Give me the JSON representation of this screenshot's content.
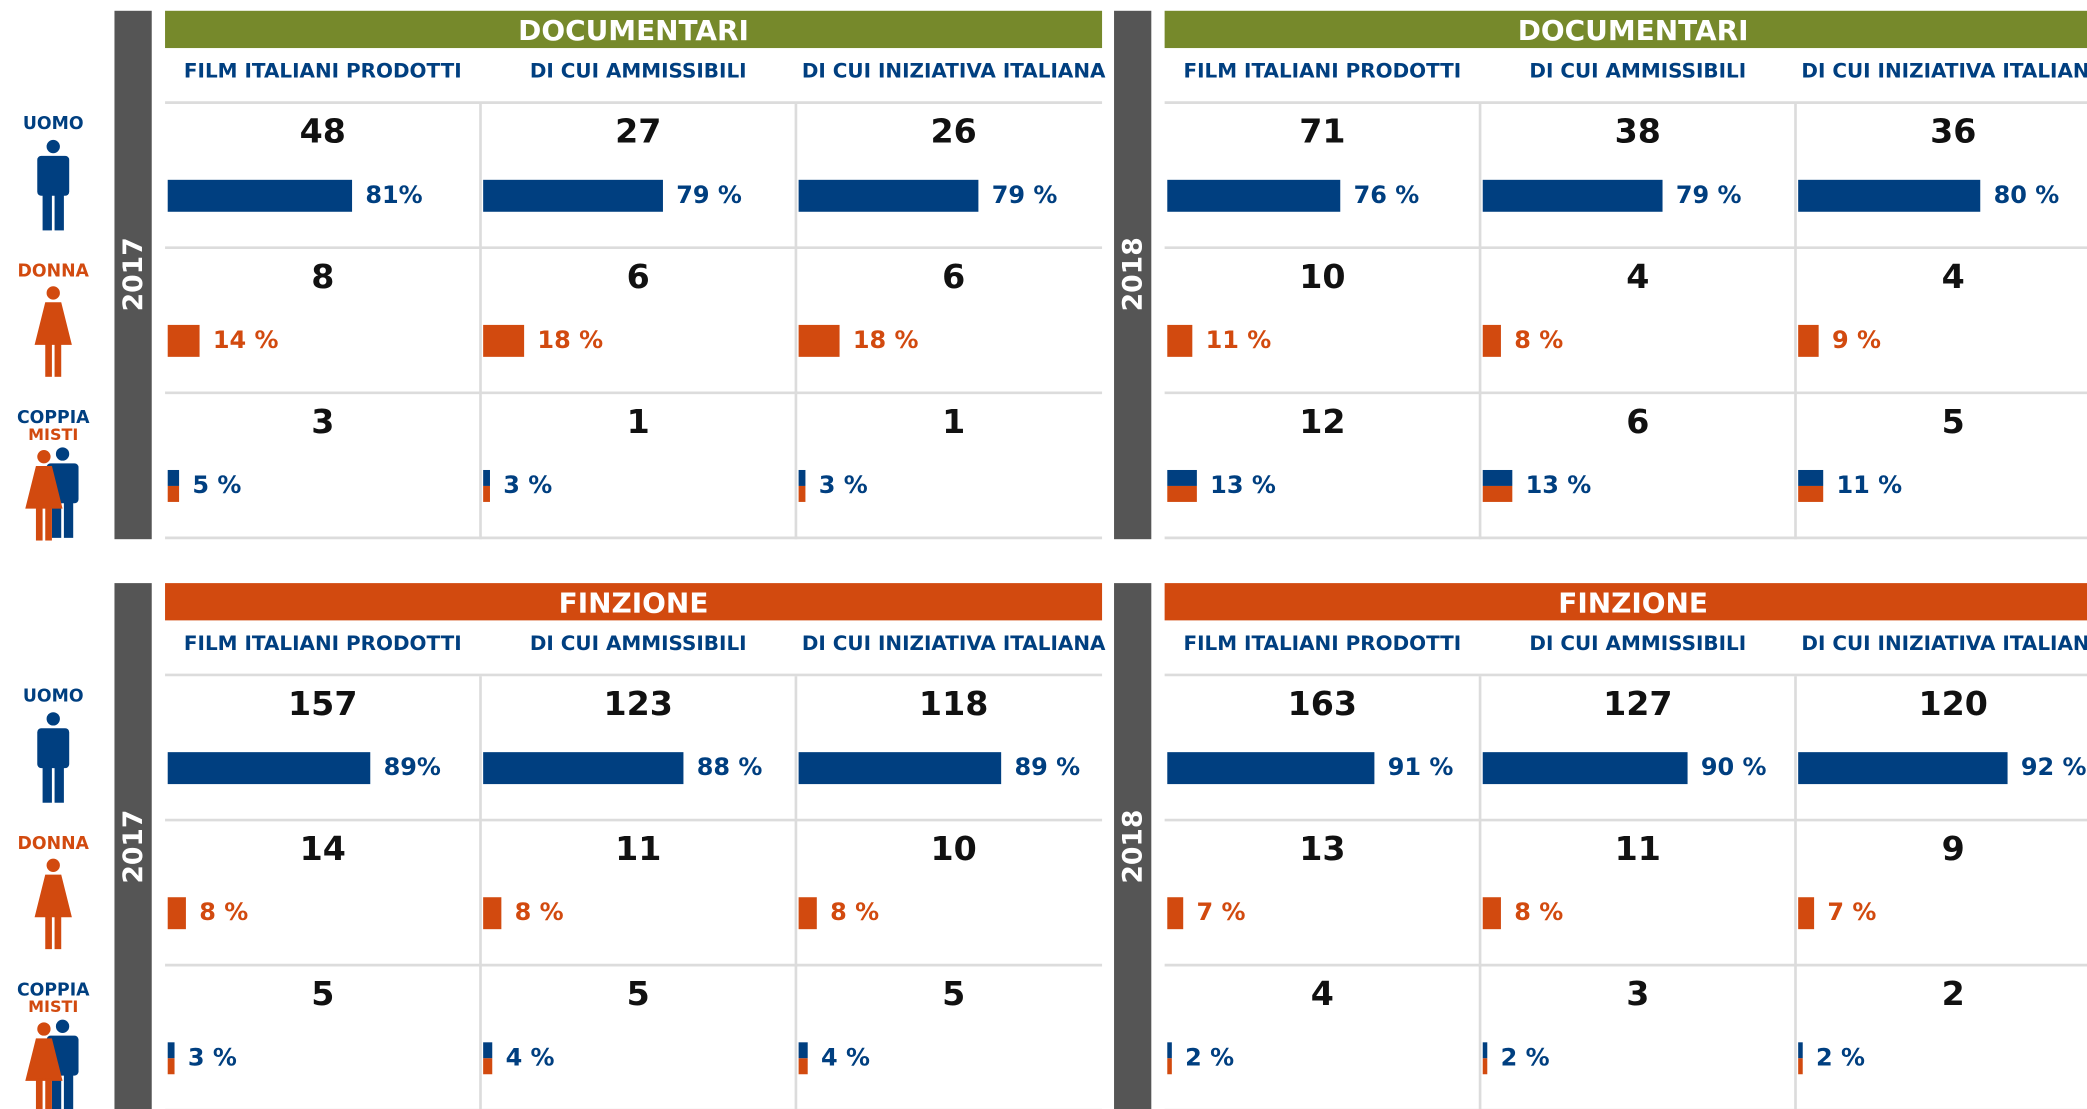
{
  "row_labels": {
    "uomo": "UOMO",
    "donna": "DONNA",
    "coppia": "COPPIA",
    "misti": "MISTI"
  },
  "panels": [
    {
      "title": "DOCUMENTARI",
      "year": "2017",
      "columns": [
        "FILM ITALIANI PRODOTTI",
        "DI CUI AMMISSIBILI",
        "DI CUI INIZIATIVA ITALIANA"
      ],
      "cells": [
        [
          {
            "count": 48,
            "pct": 81,
            "pct_label": "81%"
          },
          {
            "count": 27,
            "pct": 79,
            "pct_label": "79 %"
          },
          {
            "count": 26,
            "pct": 79,
            "pct_label": "79 %"
          }
        ],
        [
          {
            "count": 8,
            "pct": 14,
            "pct_label": "14 %"
          },
          {
            "count": 6,
            "pct": 18,
            "pct_label": "18 %"
          },
          {
            "count": 6,
            "pct": 18,
            "pct_label": "18 %"
          }
        ],
        [
          {
            "count": 3,
            "pct": 5,
            "pct_label": "5 %"
          },
          {
            "count": 1,
            "pct": 3,
            "pct_label": "3 %"
          },
          {
            "count": 1,
            "pct": 3,
            "pct_label": "3 %"
          }
        ]
      ]
    },
    {
      "title": "DOCUMENTARI",
      "year": "2018",
      "columns": [
        "FILM ITALIANI PRODOTTI",
        "DI CUI AMMISSIBILI",
        "DI CUI INIZIATIVA ITALIANA"
      ],
      "cells": [
        [
          {
            "count": 71,
            "pct": 76,
            "pct_label": "76 %"
          },
          {
            "count": 38,
            "pct": 79,
            "pct_label": "79 %"
          },
          {
            "count": 36,
            "pct": 80,
            "pct_label": "80 %"
          }
        ],
        [
          {
            "count": 10,
            "pct": 11,
            "pct_label": "11 %"
          },
          {
            "count": 4,
            "pct": 8,
            "pct_label": "8 %"
          },
          {
            "count": 4,
            "pct": 9,
            "pct_label": "9 %"
          }
        ],
        [
          {
            "count": 12,
            "pct": 13,
            "pct_label": "13 %"
          },
          {
            "count": 6,
            "pct": 13,
            "pct_label": "13 %"
          },
          {
            "count": 5,
            "pct": 11,
            "pct_label": "11 %"
          }
        ]
      ]
    },
    {
      "title": "FINZIONE",
      "year": "2017",
      "columns": [
        "FILM ITALIANI PRODOTTI",
        "DI CUI AMMISSIBILI",
        "DI CUI INIZIATIVA ITALIANA"
      ],
      "cells": [
        [
          {
            "count": 157,
            "pct": 89,
            "pct_label": "89%"
          },
          {
            "count": 123,
            "pct": 88,
            "pct_label": "88 %"
          },
          {
            "count": 118,
            "pct": 89,
            "pct_label": "89 %"
          }
        ],
        [
          {
            "count": 14,
            "pct": 8,
            "pct_label": "8 %"
          },
          {
            "count": 11,
            "pct": 8,
            "pct_label": "8 %"
          },
          {
            "count": 10,
            "pct": 8,
            "pct_label": "8 %"
          }
        ],
        [
          {
            "count": 5,
            "pct": 3,
            "pct_label": "3 %"
          },
          {
            "count": 5,
            "pct": 4,
            "pct_label": "4 %"
          },
          {
            "count": 5,
            "pct": 4,
            "pct_label": "4 %"
          }
        ]
      ]
    },
    {
      "title": "FINZIONE",
      "year": "2018",
      "columns": [
        "FILM ITALIANI PRODOTTI",
        "DI CUI AMMISSIBILI",
        "DI CUI INIZIATIVA ITALIANA"
      ],
      "cells": [
        [
          {
            "count": 163,
            "pct": 91,
            "pct_label": "91 %"
          },
          {
            "count": 127,
            "pct": 90,
            "pct_label": "90 %"
          },
          {
            "count": 120,
            "pct": 92,
            "pct_label": "92 %"
          }
        ],
        [
          {
            "count": 13,
            "pct": 7,
            "pct_label": "7 %"
          },
          {
            "count": 11,
            "pct": 8,
            "pct_label": "8 %"
          },
          {
            "count": 9,
            "pct": 7,
            "pct_label": "7 %"
          }
        ],
        [
          {
            "count": 4,
            "pct": 2,
            "pct_label": "2 %"
          },
          {
            "count": 3,
            "pct": 2,
            "pct_label": "2 %"
          },
          {
            "count": 2,
            "pct": 2,
            "pct_label": "2 %"
          }
        ]
      ]
    }
  ]
}
